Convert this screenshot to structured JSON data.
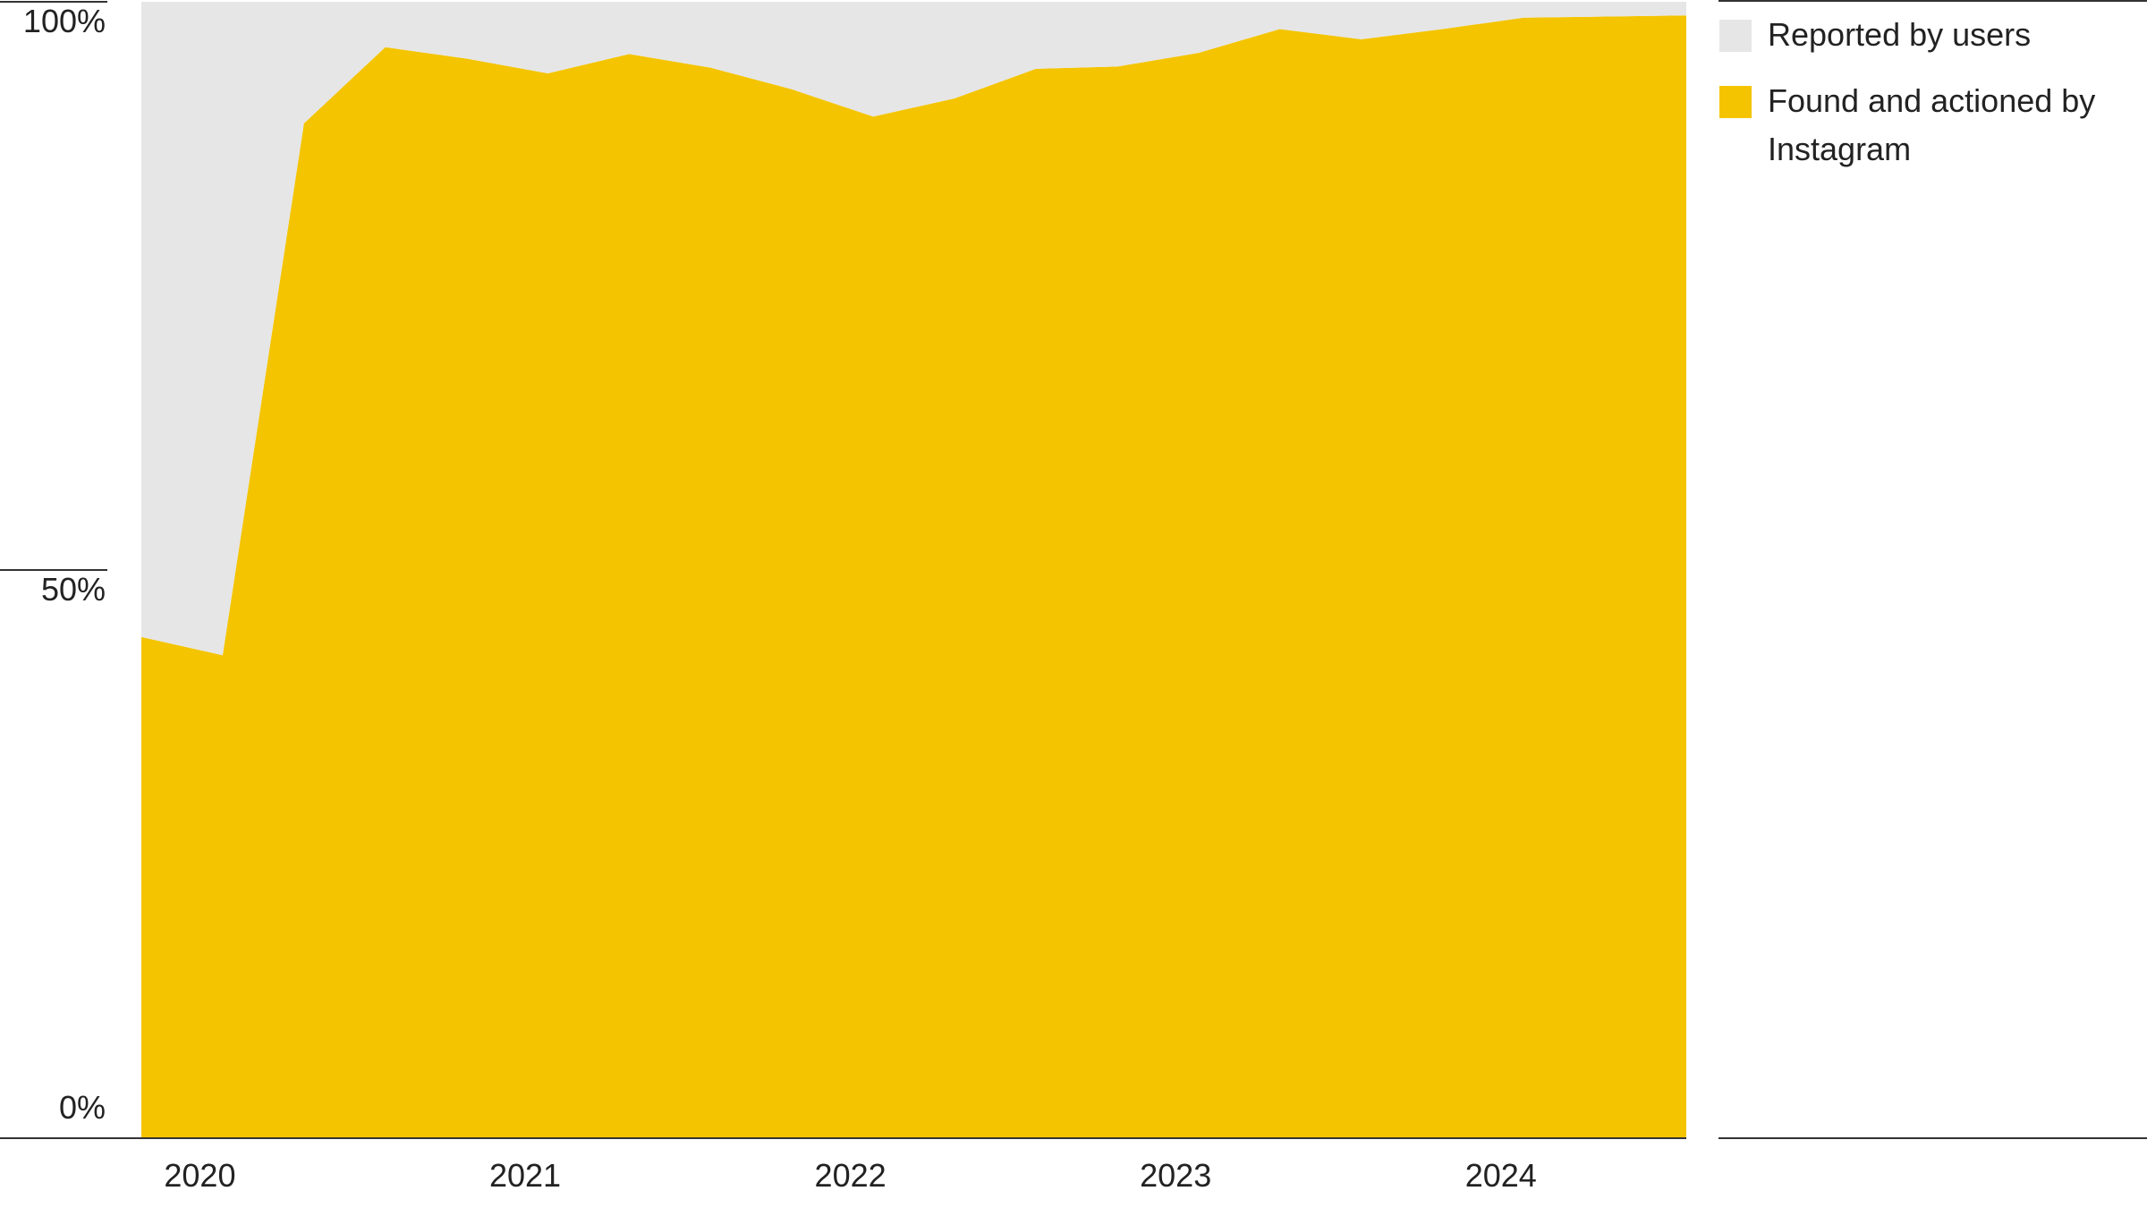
{
  "chart_data": {
    "type": "area",
    "x": [
      2019.82,
      2020.07,
      2020.32,
      2020.57,
      2020.82,
      2021.07,
      2021.32,
      2021.57,
      2021.82,
      2022.07,
      2022.32,
      2022.57,
      2022.82,
      2023.07,
      2023.32,
      2023.57,
      2023.82,
      2024.07,
      2024.32,
      2024.57
    ],
    "series": [
      {
        "name": "Found and actioned by Instagram",
        "color": "#f4c400",
        "values": [
          44.1,
          42.5,
          89.3,
          96.0,
          95.0,
          93.7,
          95.4,
          94.2,
          92.3,
          89.9,
          91.5,
          94.1,
          94.3,
          95.5,
          97.6,
          96.7,
          97.6,
          98.6,
          98.7,
          98.8
        ]
      },
      {
        "name": "Reported by users",
        "color": "#e6e6e6",
        "values": [
          55.9,
          57.5,
          10.7,
          4.0,
          5.0,
          6.3,
          4.6,
          5.8,
          7.7,
          10.1,
          8.5,
          5.9,
          5.7,
          4.5,
          2.4,
          3.3,
          2.4,
          1.4,
          1.3,
          1.2
        ]
      }
    ],
    "stacked": true,
    "xlim": [
      2019.82,
      2024.57
    ],
    "xticks": [
      2020,
      2021,
      2022,
      2023,
      2024
    ],
    "ylim": [
      0,
      100
    ],
    "yticks": [
      {
        "value": 0,
        "label": "0%"
      },
      {
        "value": 50,
        "label": "50%"
      },
      {
        "value": 100,
        "label": "100%"
      }
    ]
  }
}
